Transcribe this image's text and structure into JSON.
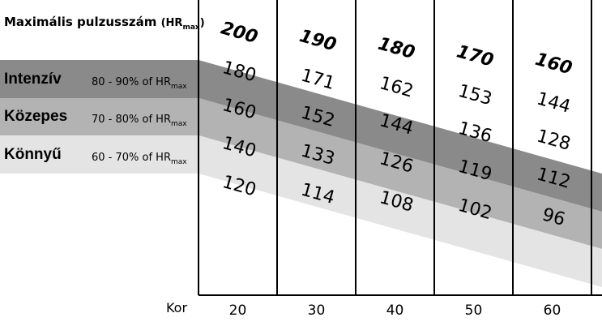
{
  "title_parts": {
    "main": "Maximális pulzusszám",
    "paren_open": "(HR",
    "paren_sub": "max",
    "paren_close": ")"
  },
  "x_axis_label": "Kor",
  "colors": {
    "intenziv": "#8a8a8a",
    "kozepes": "#b3b3b3",
    "konnyu": "#e4e4e4",
    "lines": "#000000",
    "background": "#ffffff"
  },
  "zones": [
    {
      "name": "Intenzív",
      "pct": "80 - 90% of HR",
      "sub": "max"
    },
    {
      "name": "Közepes",
      "pct": "70 - 80% of HR",
      "sub": "max"
    },
    {
      "name": "Könnyű",
      "pct": "60 - 70% of HR",
      "sub": "max"
    }
  ],
  "chart_data": {
    "type": "area",
    "x": [
      20,
      30,
      40,
      50,
      60
    ],
    "xlabel": "Kor",
    "series": [
      {
        "name": "Maximális pulzusszám (HRmax)",
        "values": [
          200,
          190,
          180,
          170,
          160
        ]
      },
      {
        "name": "Intenzív",
        "values": [
          180,
          171,
          162,
          153,
          144
        ]
      },
      {
        "name": "Közepes",
        "values": [
          160,
          152,
          144,
          136,
          128
        ]
      },
      {
        "name": "Könnyű",
        "values": [
          140,
          133,
          126,
          119,
          112
        ]
      },
      {
        "values": [
          120,
          114,
          108,
          102,
          96
        ]
      }
    ],
    "grid": true,
    "legend": "left"
  }
}
